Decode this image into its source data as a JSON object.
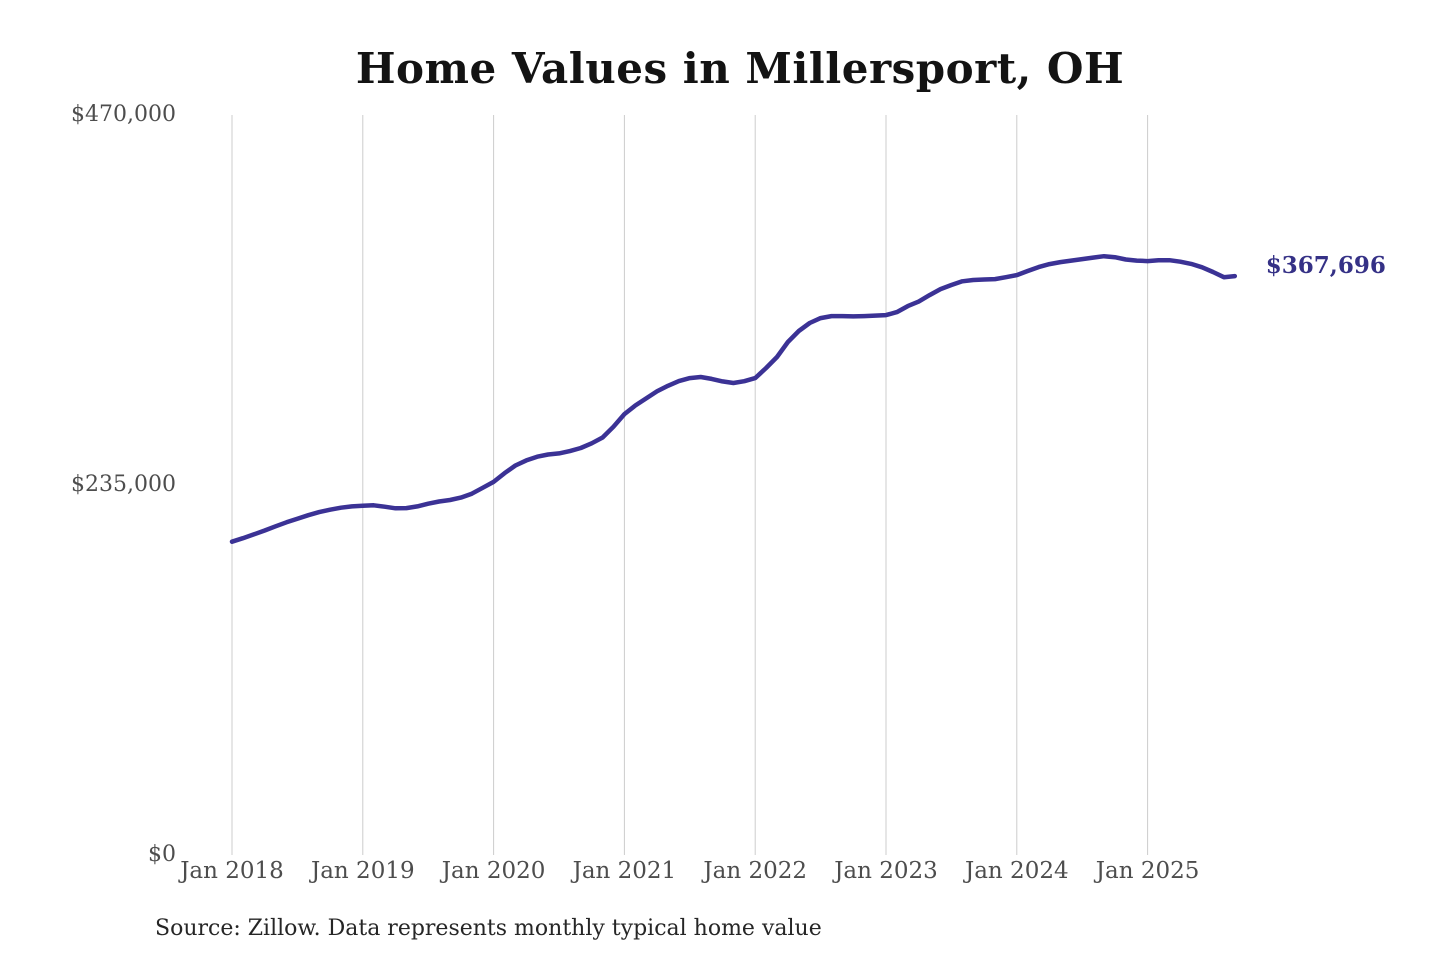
{
  "title": "Home Values in Millersport, OH",
  "source_note": "Source: Zillow. Data represents monthly typical home value",
  "annotation": {
    "label": "$367,696"
  },
  "colors": {
    "background": "#ffffff",
    "line": "#3b3295",
    "annotation": "#353186",
    "grid": "#cccccc",
    "title": "#131313",
    "axis_labels": "#4d4d4d",
    "source": "#262626"
  },
  "chart_data": {
    "type": "line",
    "title": "Home Values in Millersport, OH",
    "xlabel": "",
    "ylabel": "",
    "ylim": [
      0,
      470000
    ],
    "grid": "vertical-only",
    "legend": "none",
    "y_ticks": [
      {
        "label": "$470,000",
        "value": 470000
      },
      {
        "label": "$235,000",
        "value": 235000
      },
      {
        "label": "$0",
        "value": 0
      }
    ],
    "x_ticks": [
      {
        "label": "Jan 2018",
        "month_index": 0
      },
      {
        "label": "Jan 2019",
        "month_index": 12
      },
      {
        "label": "Jan 2020",
        "month_index": 24
      },
      {
        "label": "Jan 2021",
        "month_index": 36
      },
      {
        "label": "Jan 2022",
        "month_index": 48
      },
      {
        "label": "Jan 2023",
        "month_index": 60
      },
      {
        "label": "Jan 2024",
        "month_index": 72
      },
      {
        "label": "Jan 2025",
        "month_index": 84
      }
    ],
    "series": [
      {
        "name": "Monthly typical home value",
        "color": "#3b3295",
        "points": [
          {
            "date": "2018-01",
            "value": 199000
          },
          {
            "date": "2018-02",
            "value": 201200
          },
          {
            "date": "2018-03",
            "value": 203600
          },
          {
            "date": "2018-04",
            "value": 206100
          },
          {
            "date": "2018-05",
            "value": 208800
          },
          {
            "date": "2018-06",
            "value": 211300
          },
          {
            "date": "2018-07",
            "value": 213600
          },
          {
            "date": "2018-08",
            "value": 215800
          },
          {
            "date": "2018-09",
            "value": 217800
          },
          {
            "date": "2018-10",
            "value": 219300
          },
          {
            "date": "2018-11",
            "value": 220600
          },
          {
            "date": "2018-12",
            "value": 221400
          },
          {
            "date": "2019-01",
            "value": 221800
          },
          {
            "date": "2019-02",
            "value": 222100
          },
          {
            "date": "2019-03",
            "value": 221200
          },
          {
            "date": "2019-04",
            "value": 220200
          },
          {
            "date": "2019-05",
            "value": 220300
          },
          {
            "date": "2019-06",
            "value": 221400
          },
          {
            "date": "2019-07",
            "value": 223100
          },
          {
            "date": "2019-08",
            "value": 224500
          },
          {
            "date": "2019-09",
            "value": 225500
          },
          {
            "date": "2019-10",
            "value": 227000
          },
          {
            "date": "2019-11",
            "value": 229500
          },
          {
            "date": "2019-12",
            "value": 233200
          },
          {
            "date": "2020-01",
            "value": 237000
          },
          {
            "date": "2020-02",
            "value": 242500
          },
          {
            "date": "2020-03",
            "value": 247400
          },
          {
            "date": "2020-04",
            "value": 250600
          },
          {
            "date": "2020-05",
            "value": 253000
          },
          {
            "date": "2020-06",
            "value": 254400
          },
          {
            "date": "2020-07",
            "value": 255100
          },
          {
            "date": "2020-08",
            "value": 256500
          },
          {
            "date": "2020-09",
            "value": 258500
          },
          {
            "date": "2020-10",
            "value": 261500
          },
          {
            "date": "2020-11",
            "value": 265200
          },
          {
            "date": "2020-12",
            "value": 272000
          },
          {
            "date": "2021-01",
            "value": 280000
          },
          {
            "date": "2021-02",
            "value": 285500
          },
          {
            "date": "2021-03",
            "value": 290000
          },
          {
            "date": "2021-04",
            "value": 294500
          },
          {
            "date": "2021-05",
            "value": 298000
          },
          {
            "date": "2021-06",
            "value": 301000
          },
          {
            "date": "2021-07",
            "value": 302900
          },
          {
            "date": "2021-08",
            "value": 303600
          },
          {
            "date": "2021-09",
            "value": 302400
          },
          {
            "date": "2021-10",
            "value": 300800
          },
          {
            "date": "2021-11",
            "value": 299800
          },
          {
            "date": "2021-12",
            "value": 300900
          },
          {
            "date": "2022-01",
            "value": 302900
          },
          {
            "date": "2022-02",
            "value": 309300
          },
          {
            "date": "2022-03",
            "value": 316300
          },
          {
            "date": "2022-04",
            "value": 325800
          },
          {
            "date": "2022-05",
            "value": 332800
          },
          {
            "date": "2022-06",
            "value": 337900
          },
          {
            "date": "2022-07",
            "value": 341000
          },
          {
            "date": "2022-08",
            "value": 342300
          },
          {
            "date": "2022-09",
            "value": 342300
          },
          {
            "date": "2022-10",
            "value": 342100
          },
          {
            "date": "2022-11",
            "value": 342300
          },
          {
            "date": "2022-12",
            "value": 342600
          },
          {
            "date": "2023-01",
            "value": 342900
          },
          {
            "date": "2023-02",
            "value": 344800
          },
          {
            "date": "2023-03",
            "value": 348600
          },
          {
            "date": "2023-04",
            "value": 351500
          },
          {
            "date": "2023-05",
            "value": 355600
          },
          {
            "date": "2023-06",
            "value": 359400
          },
          {
            "date": "2023-07",
            "value": 362000
          },
          {
            "date": "2023-08",
            "value": 364400
          },
          {
            "date": "2023-09",
            "value": 365200
          },
          {
            "date": "2023-10",
            "value": 365500
          },
          {
            "date": "2023-11",
            "value": 365800
          },
          {
            "date": "2023-12",
            "value": 367000
          },
          {
            "date": "2024-01",
            "value": 368300
          },
          {
            "date": "2024-02",
            "value": 370900
          },
          {
            "date": "2024-03",
            "value": 373400
          },
          {
            "date": "2024-04",
            "value": 375300
          },
          {
            "date": "2024-05",
            "value": 376600
          },
          {
            "date": "2024-06",
            "value": 377500
          },
          {
            "date": "2024-07",
            "value": 378500
          },
          {
            "date": "2024-08",
            "value": 379400
          },
          {
            "date": "2024-09",
            "value": 380300
          },
          {
            "date": "2024-10",
            "value": 379700
          },
          {
            "date": "2024-11",
            "value": 378200
          },
          {
            "date": "2024-12",
            "value": 377500
          },
          {
            "date": "2025-01",
            "value": 377200
          },
          {
            "date": "2025-02",
            "value": 377700
          },
          {
            "date": "2025-03",
            "value": 377800
          },
          {
            "date": "2025-04",
            "value": 376800
          },
          {
            "date": "2025-05",
            "value": 375400
          },
          {
            "date": "2025-06",
            "value": 373300
          },
          {
            "date": "2025-07",
            "value": 370300
          },
          {
            "date": "2025-08",
            "value": 367000
          },
          {
            "date": "2025-09",
            "value": 367696
          }
        ]
      }
    ]
  }
}
